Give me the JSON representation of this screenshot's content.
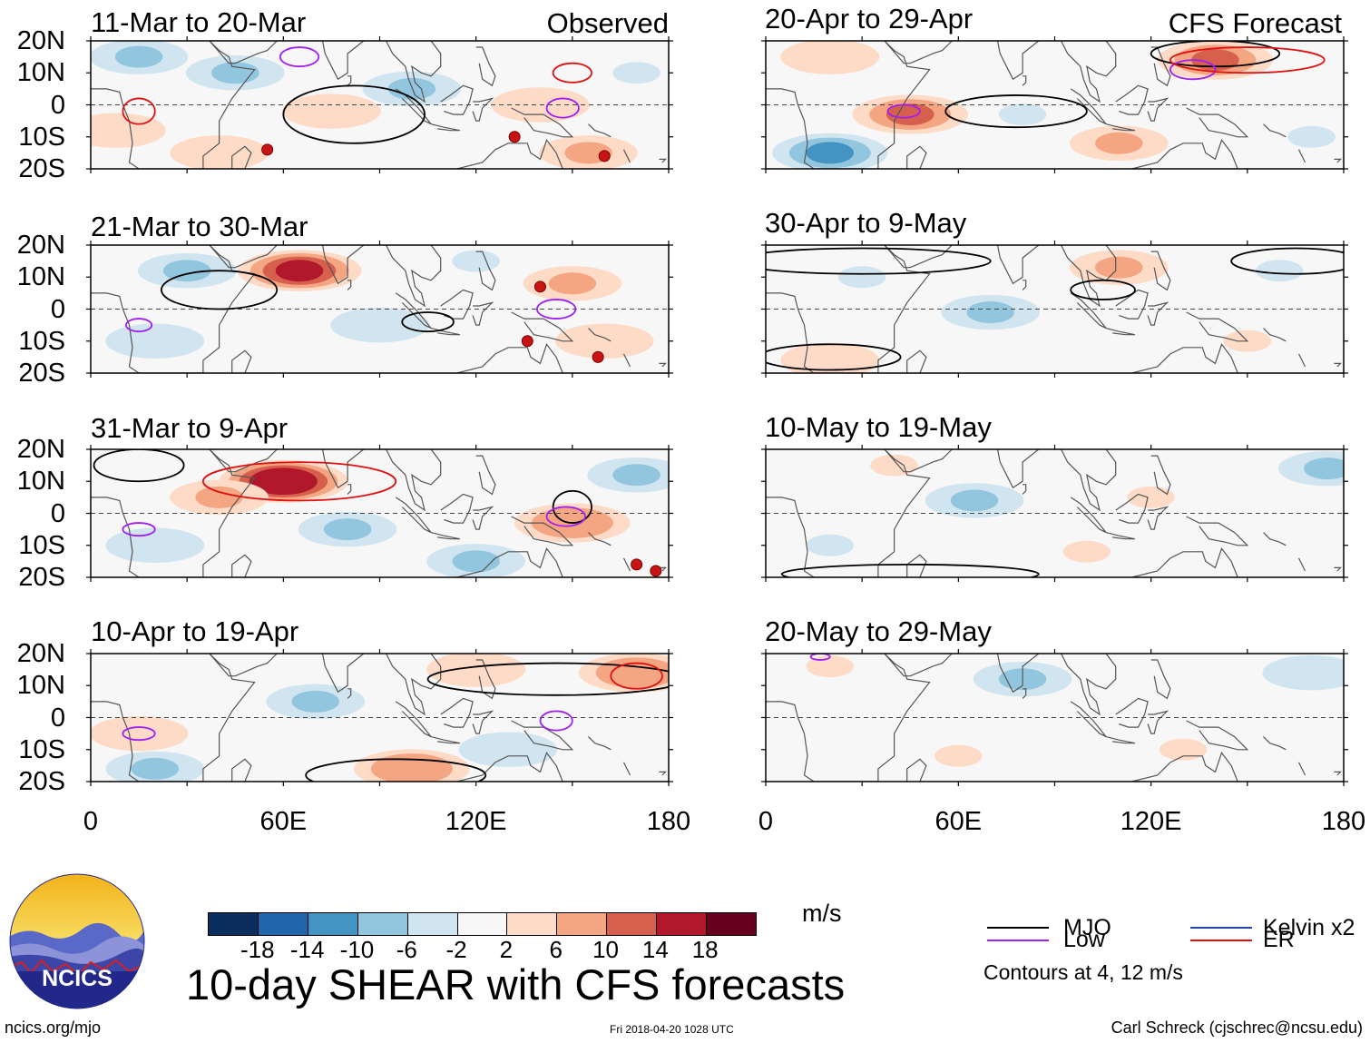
{
  "panels": [
    {
      "title": "11-Mar to 20-Mar",
      "tag": "Observed"
    },
    {
      "title": "21-Mar to 30-Mar",
      "tag": ""
    },
    {
      "title": "31-Mar to 9-Apr",
      "tag": ""
    },
    {
      "title": "10-Apr to 19-Apr",
      "tag": ""
    },
    {
      "title": "20-Apr to 29-Apr",
      "tag": "CFS Forecast"
    },
    {
      "title": "30-Apr to 9-May",
      "tag": ""
    },
    {
      "title": "10-May to 19-May",
      "tag": ""
    },
    {
      "title": "20-May to 29-May",
      "tag": ""
    }
  ],
  "y_ticks": [
    "20N",
    "10N",
    "0",
    "10S",
    "20S"
  ],
  "x_ticks": [
    "0",
    "60E",
    "120E",
    "180"
  ],
  "colorbar": {
    "colors": [
      "#0c2e5e",
      "#2166ac",
      "#4393c3",
      "#92c5de",
      "#d1e5f0",
      "#f7f7f7",
      "#fddbc7",
      "#f4a582",
      "#d6604d",
      "#b2182b",
      "#67001f"
    ],
    "labels": [
      "-18",
      "-14",
      "-10",
      "-6",
      "-2",
      "2",
      "6",
      "10",
      "14",
      "18"
    ],
    "units": "m/s"
  },
  "title": "10-day SHEAR with CFS forecasts",
  "legend": [
    {
      "label": "MJO",
      "color": "#000000"
    },
    {
      "label": "Kelvin x2",
      "color": "#1f3fd6"
    },
    {
      "label": "Low",
      "color": "#a020f0"
    },
    {
      "label": "ER",
      "color": "#e01010"
    }
  ],
  "contours_note": "Contours at 4, 12 m/s",
  "logo_text": "NCICS",
  "footer": {
    "left": "ncics.org/mjo",
    "center": "Fri 2018-04-20 1028 UTC",
    "right": "Carl Schreck (cjschrec@ncsu.edu)"
  },
  "map_features": {
    "panels": [
      {
        "anomaly_blobs": [
          {
            "lon": 15,
            "lat": 15,
            "value": -8
          },
          {
            "lon": 8,
            "lat": -8,
            "value": 6
          },
          {
            "lon": 45,
            "lat": 10,
            "value": -6
          },
          {
            "lon": 75,
            "lat": -2,
            "value": 6
          },
          {
            "lon": 100,
            "lat": 5,
            "value": -6
          },
          {
            "lon": 140,
            "lat": 0,
            "value": 5
          },
          {
            "lon": 155,
            "lat": -15,
            "value": 7
          },
          {
            "lon": 170,
            "lat": 10,
            "value": -4
          },
          {
            "lon": 40,
            "lat": -15,
            "value": 5
          }
        ],
        "contours": [
          {
            "type": "MJO",
            "lon": 82,
            "lat": -3,
            "rlon": 22,
            "rlat": 9
          },
          {
            "type": "Low",
            "lon": 65,
            "lat": 15,
            "rlon": 6,
            "rlat": 3
          },
          {
            "type": "Low",
            "lon": 147,
            "lat": -1,
            "rlon": 5,
            "rlat": 3
          },
          {
            "type": "ER",
            "lon": 15,
            "lat": -2,
            "rlon": 5,
            "rlat": 4
          },
          {
            "type": "ER",
            "lon": 150,
            "lat": 10,
            "rlon": 6,
            "rlat": 3
          }
        ],
        "storms": [
          {
            "lon": 55,
            "lat": -14
          },
          {
            "lon": 132,
            "lat": -10
          },
          {
            "lon": 160,
            "lat": -16
          }
        ]
      },
      {
        "anomaly_blobs": [
          {
            "lon": 30,
            "lat": 12,
            "value": -8
          },
          {
            "lon": 65,
            "lat": 12,
            "value": 16
          },
          {
            "lon": 90,
            "lat": -5,
            "value": -5
          },
          {
            "lon": 150,
            "lat": 8,
            "value": 8
          },
          {
            "lon": 160,
            "lat": -10,
            "value": 6
          },
          {
            "lon": 120,
            "lat": 15,
            "value": -4
          },
          {
            "lon": 20,
            "lat": -10,
            "value": -5
          }
        ],
        "contours": [
          {
            "type": "MJO",
            "lon": 40,
            "lat": 6,
            "rlon": 18,
            "rlat": 6
          },
          {
            "type": "MJO",
            "lon": 105,
            "lat": -4,
            "rlon": 8,
            "rlat": 3
          },
          {
            "type": "Low",
            "lon": 145,
            "lat": 0,
            "rlon": 6,
            "rlat": 3
          },
          {
            "type": "Low",
            "lon": 15,
            "lat": -5,
            "rlon": 4,
            "rlat": 2
          }
        ],
        "storms": [
          {
            "lon": 140,
            "lat": 7
          },
          {
            "lon": 136,
            "lat": -10
          },
          {
            "lon": 158,
            "lat": -15
          }
        ]
      },
      {
        "anomaly_blobs": [
          {
            "lon": 60,
            "lat": 10,
            "value": 18
          },
          {
            "lon": 40,
            "lat": 5,
            "value": 8
          },
          {
            "lon": 80,
            "lat": -5,
            "value": -8
          },
          {
            "lon": 150,
            "lat": -3,
            "value": 10
          },
          {
            "lon": 170,
            "lat": 12,
            "value": -8
          },
          {
            "lon": 20,
            "lat": -10,
            "value": -5
          },
          {
            "lon": 120,
            "lat": -15,
            "value": -6
          }
        ],
        "contours": [
          {
            "type": "MJO",
            "lon": 15,
            "lat": 15,
            "rlon": 14,
            "rlat": 5
          },
          {
            "type": "MJO",
            "lon": 150,
            "lat": 2,
            "rlon": 6,
            "rlat": 5
          },
          {
            "type": "ER",
            "lon": 65,
            "lat": 10,
            "rlon": 30,
            "rlat": 6
          },
          {
            "type": "Low",
            "lon": 15,
            "lat": -5,
            "rlon": 5,
            "rlat": 2
          },
          {
            "type": "Low",
            "lon": 148,
            "lat": -1,
            "rlon": 6,
            "rlat": 3
          }
        ],
        "storms": [
          {
            "lon": 170,
            "lat": -16
          },
          {
            "lon": 176,
            "lat": -18
          }
        ]
      },
      {
        "anomaly_blobs": [
          {
            "lon": 100,
            "lat": -16,
            "value": 10
          },
          {
            "lon": 170,
            "lat": 14,
            "value": 10
          },
          {
            "lon": 70,
            "lat": 5,
            "value": -8
          },
          {
            "lon": 20,
            "lat": -16,
            "value": -8
          },
          {
            "lon": 15,
            "lat": -5,
            "value": 6
          },
          {
            "lon": 130,
            "lat": -10,
            "value": -5
          },
          {
            "lon": 120,
            "lat": 15,
            "value": 6
          }
        ],
        "contours": [
          {
            "type": "MJO",
            "lon": 95,
            "lat": -18,
            "rlon": 28,
            "rlat": 5
          },
          {
            "type": "MJO",
            "lon": 145,
            "lat": 12,
            "rlon": 40,
            "rlat": 5
          },
          {
            "type": "Low",
            "lon": 15,
            "lat": -5,
            "rlon": 5,
            "rlat": 2
          },
          {
            "type": "Low",
            "lon": 145,
            "lat": -1,
            "rlon": 5,
            "rlat": 3
          },
          {
            "type": "ER",
            "lon": 170,
            "lat": 13,
            "rlon": 8,
            "rlat": 4
          }
        ],
        "storms": []
      },
      {
        "anomaly_blobs": [
          {
            "lon": 45,
            "lat": -3,
            "value": 12
          },
          {
            "lon": 140,
            "lat": 14,
            "value": 12
          },
          {
            "lon": 20,
            "lat": -15,
            "value": -10
          },
          {
            "lon": 80,
            "lat": -3,
            "value": -3
          },
          {
            "lon": 110,
            "lat": -12,
            "value": 7
          },
          {
            "lon": 20,
            "lat": 15,
            "value": 5
          },
          {
            "lon": 170,
            "lat": -10,
            "value": -4
          }
        ],
        "contours": [
          {
            "type": "MJO",
            "lon": 78,
            "lat": -2,
            "rlon": 22,
            "rlat": 5
          },
          {
            "type": "MJO",
            "lon": 140,
            "lat": 16,
            "rlon": 20,
            "rlat": 4
          },
          {
            "type": "Low",
            "lon": 43,
            "lat": -2,
            "rlon": 5,
            "rlat": 2
          },
          {
            "type": "Low",
            "lon": 133,
            "lat": 11,
            "rlon": 7,
            "rlat": 3
          },
          {
            "type": "ER",
            "lon": 150,
            "lat": 14,
            "rlon": 24,
            "rlat": 4
          }
        ],
        "storms": []
      },
      {
        "anomaly_blobs": [
          {
            "lon": 110,
            "lat": 13,
            "value": 7
          },
          {
            "lon": 70,
            "lat": -1,
            "value": -7
          },
          {
            "lon": 20,
            "lat": -16,
            "value": 5
          },
          {
            "lon": 160,
            "lat": 12,
            "value": -3
          },
          {
            "lon": 30,
            "lat": 10,
            "value": -4
          },
          {
            "lon": 150,
            "lat": -10,
            "value": 4
          }
        ],
        "contours": [
          {
            "type": "MJO",
            "lon": 30,
            "lat": 15,
            "rlon": 40,
            "rlat": 4
          },
          {
            "type": "MJO",
            "lon": 165,
            "lat": 15,
            "rlon": 20,
            "rlat": 4
          },
          {
            "type": "MJO",
            "lon": 105,
            "lat": 6,
            "rlon": 10,
            "rlat": 3
          },
          {
            "type": "MJO",
            "lon": 20,
            "lat": -15,
            "rlon": 22,
            "rlat": 4
          }
        ],
        "storms": []
      },
      {
        "anomaly_blobs": [
          {
            "lon": 65,
            "lat": 4,
            "value": -7
          },
          {
            "lon": 175,
            "lat": 14,
            "value": -8
          },
          {
            "lon": 120,
            "lat": 5,
            "value": 4
          },
          {
            "lon": 40,
            "lat": 15,
            "value": 4
          },
          {
            "lon": 100,
            "lat": -12,
            "value": 4
          },
          {
            "lon": 20,
            "lat": -10,
            "value": -3
          }
        ],
        "contours": [
          {
            "type": "MJO",
            "lon": 45,
            "lat": -19,
            "rlon": 40,
            "rlat": 3
          }
        ],
        "storms": []
      },
      {
        "anomaly_blobs": [
          {
            "lon": 80,
            "lat": 12,
            "value": -6
          },
          {
            "lon": 170,
            "lat": 14,
            "value": -5
          },
          {
            "lon": 60,
            "lat": -12,
            "value": 4
          },
          {
            "lon": 130,
            "lat": -10,
            "value": 4
          },
          {
            "lon": 20,
            "lat": 16,
            "value": 4
          }
        ],
        "contours": [
          {
            "type": "Low",
            "lon": 17,
            "lat": 19,
            "rlon": 3,
            "rlat": 1
          }
        ],
        "storms": []
      }
    ]
  }
}
